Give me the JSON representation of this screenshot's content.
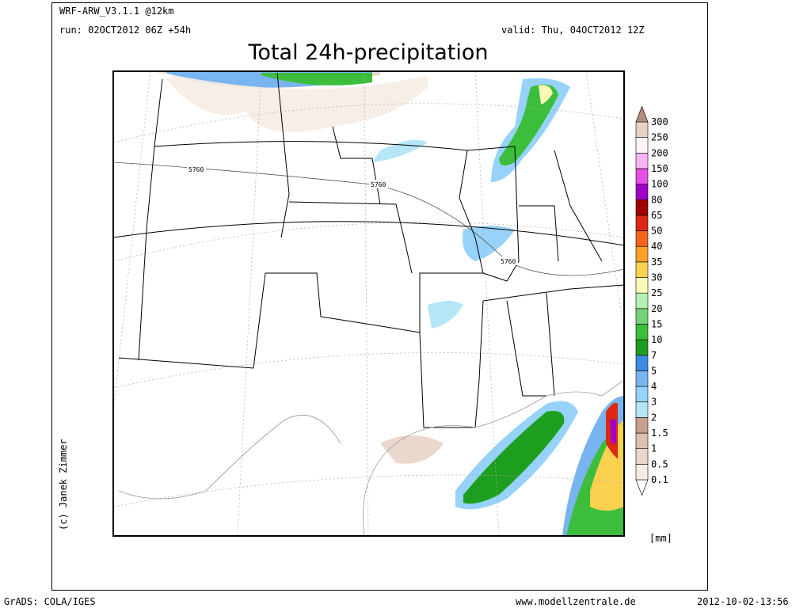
{
  "header": {
    "model": "WRF-ARW_V3.1.1 @12km",
    "run": "run: 02OCT2012 06Z +54h",
    "valid": "valid: Thu, 04OCT2012 12Z",
    "title": "Total 24h-precipitation"
  },
  "map": {
    "contour_labels": [
      "5760",
      "5760",
      "5760"
    ]
  },
  "legend": {
    "labels": [
      "0.1",
      "0.5",
      "1",
      "1.5",
      "2",
      "3",
      "4",
      "5",
      "7",
      "10",
      "15",
      "20",
      "25",
      "30",
      "35",
      "40",
      "50",
      "65",
      "80",
      "100",
      "150",
      "200",
      "250",
      "300"
    ],
    "colors": [
      "#ffffff",
      "#f6ece4",
      "#ead8cc",
      "#dcc0b0",
      "#c8a090",
      "#b4e6f5",
      "#96d2fa",
      "#78b4f0",
      "#3c8ce6",
      "#1e9e1e",
      "#3cbe3c",
      "#78d278",
      "#b4f0b4",
      "#fafab4",
      "#fad250",
      "#faa028",
      "#f0641e",
      "#dc2814",
      "#a00000",
      "#a000c8",
      "#e650e6",
      "#f5b4f5",
      "#fff5f5",
      "#e6d2c8",
      "#b48c7d"
    ],
    "unit": "[mm]"
  },
  "credit": "(c) Janek Zimmer",
  "footer": {
    "left": "GrADS: COLA/IGES",
    "center": "www.modellzentrale.de",
    "right": "2012-10-02-13:56"
  }
}
